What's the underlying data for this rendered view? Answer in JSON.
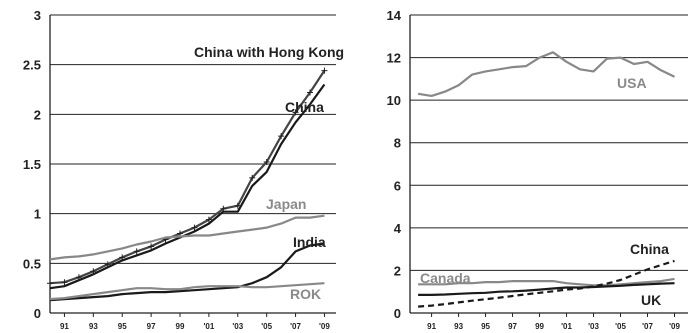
{
  "chart_data": [
    {
      "type": "line",
      "title": "",
      "xlabel": "",
      "ylabel": "",
      "ylim": [
        0,
        3
      ],
      "yticks": [
        "0",
        "0.5",
        "1",
        "1.5",
        "2",
        "2.5",
        "3"
      ],
      "x": [
        1990,
        1991,
        1992,
        1993,
        1994,
        1995,
        1996,
        1997,
        1998,
        1999,
        2000,
        2001,
        2002,
        2003,
        2004,
        2005,
        2006,
        2007,
        2008,
        2009
      ],
      "xtick_labels": [
        "91",
        "93",
        "95",
        "97",
        "99",
        "'01",
        "'03",
        "'05",
        "'07",
        "'09"
      ],
      "grid": true,
      "series": [
        {
          "name": "China with Hong Kong",
          "color": "#444444",
          "marker": "plus",
          "values": [
            0.3,
            0.31,
            0.36,
            0.42,
            0.49,
            0.56,
            0.62,
            0.67,
            0.74,
            0.8,
            0.86,
            0.94,
            1.05,
            1.08,
            1.36,
            1.52,
            1.78,
            2.02,
            2.22,
            2.44
          ]
        },
        {
          "name": "China",
          "color": "#1a1a1a",
          "values": [
            0.25,
            0.27,
            0.33,
            0.39,
            0.46,
            0.53,
            0.58,
            0.63,
            0.7,
            0.76,
            0.82,
            0.9,
            1.02,
            1.02,
            1.28,
            1.42,
            1.7,
            1.92,
            2.1,
            2.3
          ]
        },
        {
          "name": "Japan",
          "color": "#888888",
          "values": [
            0.54,
            0.56,
            0.57,
            0.59,
            0.62,
            0.65,
            0.69,
            0.72,
            0.76,
            0.77,
            0.78,
            0.78,
            0.8,
            0.82,
            0.84,
            0.86,
            0.9,
            0.96,
            0.96,
            0.98
          ]
        },
        {
          "name": "India",
          "color": "#1a1a1a",
          "values": [
            0.13,
            0.14,
            0.15,
            0.16,
            0.17,
            0.19,
            0.2,
            0.21,
            0.21,
            0.22,
            0.23,
            0.24,
            0.25,
            0.26,
            0.3,
            0.36,
            0.46,
            0.62,
            0.68,
            0.7
          ]
        },
        {
          "name": "ROK",
          "color": "#888888",
          "values": [
            0.14,
            0.15,
            0.17,
            0.19,
            0.21,
            0.23,
            0.25,
            0.25,
            0.24,
            0.24,
            0.26,
            0.27,
            0.27,
            0.27,
            0.26,
            0.26,
            0.27,
            0.28,
            0.29,
            0.3
          ]
        }
      ]
    },
    {
      "type": "line",
      "title": "",
      "xlabel": "",
      "ylabel": "",
      "ylim": [
        0,
        14
      ],
      "yticks": [
        "0",
        "2",
        "4",
        "6",
        "8",
        "10",
        "12",
        "14"
      ],
      "x": [
        1990,
        1991,
        1992,
        1993,
        1994,
        1995,
        1996,
        1997,
        1998,
        1999,
        2000,
        2001,
        2002,
        2003,
        2004,
        2005,
        2006,
        2007,
        2008,
        2009
      ],
      "xtick_labels": [
        "91",
        "93",
        "95",
        "97",
        "99",
        "'01",
        "'03",
        "'05",
        "'07",
        "'09"
      ],
      "grid": true,
      "series": [
        {
          "name": "USA",
          "color": "#888888",
          "values": [
            10.3,
            10.2,
            10.4,
            10.7,
            11.2,
            11.35,
            11.45,
            11.55,
            11.6,
            12.0,
            12.25,
            11.8,
            11.45,
            11.35,
            11.95,
            12.0,
            11.7,
            11.8,
            11.4,
            11.1
          ]
        },
        {
          "name": "Canada",
          "color": "#888888",
          "values": [
            1.35,
            1.35,
            1.35,
            1.4,
            1.4,
            1.45,
            1.45,
            1.5,
            1.5,
            1.5,
            1.5,
            1.4,
            1.35,
            1.3,
            1.3,
            1.35,
            1.4,
            1.45,
            1.5,
            1.6
          ]
        },
        {
          "name": "UK",
          "color": "#1a1a1a",
          "values": [
            0.85,
            0.85,
            0.87,
            0.9,
            0.93,
            0.95,
            1.0,
            1.02,
            1.05,
            1.1,
            1.15,
            1.2,
            1.2,
            1.22,
            1.25,
            1.28,
            1.32,
            1.35,
            1.38,
            1.4
          ]
        },
        {
          "name": "China",
          "color": "#1a1a1a",
          "dashed": true,
          "values": [
            0.3,
            0.35,
            0.42,
            0.5,
            0.58,
            0.65,
            0.72,
            0.8,
            0.88,
            0.95,
            1.02,
            1.1,
            1.15,
            1.25,
            1.38,
            1.55,
            1.8,
            2.05,
            2.25,
            2.45
          ]
        }
      ]
    }
  ]
}
